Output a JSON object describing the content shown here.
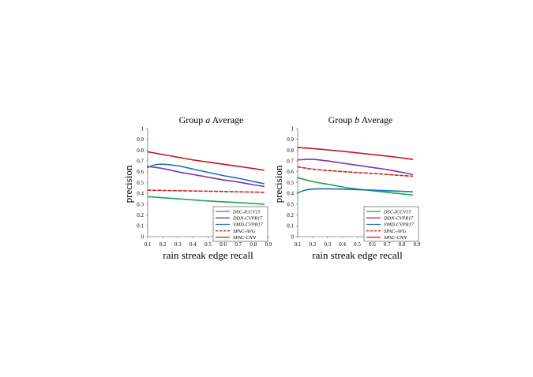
{
  "chart_data": [
    {
      "type": "line",
      "title": {
        "prefix": "Group ",
        "italic": "a",
        "suffix": " Average"
      },
      "xlabel": "rain streak edge recall",
      "ylabel": "precision",
      "xlim": [
        0.1,
        0.9
      ],
      "ylim": [
        0,
        1
      ],
      "xticks": [
        "0.1",
        "0.2",
        "0.3",
        "0.4",
        "0.5",
        "0.6",
        "0.7",
        "0.8",
        "0.9"
      ],
      "yticks": [
        "0",
        "0.1",
        "0.2",
        "0.3",
        "0.4",
        "0.5",
        "0.6",
        "0.7",
        "0.8",
        "0.9",
        "1"
      ],
      "grid": false,
      "legend_position": "bottom-right",
      "series": [
        {
          "name": "DSC-ICCV15",
          "color": "#1aa84a",
          "dash": false,
          "x": [
            0.1,
            0.3,
            0.5,
            0.7,
            0.87
          ],
          "y": [
            0.37,
            0.35,
            0.33,
            0.315,
            0.3
          ]
        },
        {
          "name": "DDN-CVPR17",
          "color": "#7a35b0",
          "dash": false,
          "x": [
            0.1,
            0.2,
            0.3,
            0.4,
            0.5,
            0.6,
            0.7,
            0.8,
            0.87
          ],
          "y": [
            0.65,
            0.63,
            0.6,
            0.575,
            0.55,
            0.525,
            0.505,
            0.48,
            0.465
          ]
        },
        {
          "name": "VMD-CVPR17",
          "color": "#1f6fb8",
          "dash": false,
          "x": [
            0.1,
            0.15,
            0.2,
            0.3,
            0.4,
            0.5,
            0.6,
            0.7,
            0.8,
            0.87
          ],
          "y": [
            0.64,
            0.665,
            0.67,
            0.655,
            0.625,
            0.595,
            0.565,
            0.54,
            0.51,
            0.49
          ]
        },
        {
          "name": "SPAC-AVG",
          "color": "#d11f1f",
          "dash": true,
          "x": [
            0.1,
            0.3,
            0.5,
            0.7,
            0.87
          ],
          "y": [
            0.43,
            0.425,
            0.42,
            0.415,
            0.41
          ]
        },
        {
          "name": "SPAC-CNN",
          "color": "#c8141a",
          "dash": false,
          "x": [
            0.1,
            0.2,
            0.3,
            0.4,
            0.5,
            0.6,
            0.7,
            0.8,
            0.87
          ],
          "y": [
            0.785,
            0.76,
            0.735,
            0.71,
            0.69,
            0.67,
            0.65,
            0.63,
            0.615
          ]
        }
      ]
    },
    {
      "type": "line",
      "title": {
        "prefix": "Group ",
        "italic": "b",
        "suffix": " Average"
      },
      "xlabel": "rain streak edge recall",
      "ylabel": "precision",
      "xlim": [
        0.1,
        0.9
      ],
      "ylim": [
        0,
        1
      ],
      "xticks": [
        "0.1",
        "0.2",
        "0.3",
        "0.4",
        "0.5",
        "0.6",
        "0.7",
        "0.8",
        "0.9"
      ],
      "yticks": [
        "0",
        "0.1",
        "0.2",
        "0.3",
        "0.4",
        "0.5",
        "0.6",
        "0.7",
        "0.8",
        "0.9",
        "1"
      ],
      "grid": false,
      "legend_position": "bottom-right",
      "series": [
        {
          "name": "DSC-ICCV15",
          "color": "#1aa84a",
          "dash": false,
          "x": [
            0.1,
            0.2,
            0.3,
            0.4,
            0.5,
            0.6,
            0.7,
            0.8,
            0.87
          ],
          "y": [
            0.545,
            0.51,
            0.485,
            0.46,
            0.44,
            0.425,
            0.41,
            0.395,
            0.385
          ]
        },
        {
          "name": "DDN-CVPR17",
          "color": "#7a35b0",
          "dash": false,
          "x": [
            0.1,
            0.2,
            0.3,
            0.4,
            0.5,
            0.6,
            0.7,
            0.8,
            0.87
          ],
          "y": [
            0.71,
            0.715,
            0.7,
            0.68,
            0.66,
            0.64,
            0.62,
            0.595,
            0.575
          ]
        },
        {
          "name": "VMD-CVPR17",
          "color": "#1f6fb8",
          "dash": false,
          "x": [
            0.1,
            0.15,
            0.2,
            0.3,
            0.5,
            0.7,
            0.87
          ],
          "y": [
            0.405,
            0.43,
            0.44,
            0.442,
            0.435,
            0.425,
            0.415
          ]
        },
        {
          "name": "SPAC-AVG",
          "color": "#d11f1f",
          "dash": true,
          "x": [
            0.1,
            0.2,
            0.3,
            0.4,
            0.5,
            0.6,
            0.7,
            0.8,
            0.87
          ],
          "y": [
            0.645,
            0.625,
            0.612,
            0.602,
            0.593,
            0.585,
            0.575,
            0.565,
            0.56
          ]
        },
        {
          "name": "SPAC-CNN",
          "color": "#c8141a",
          "dash": false,
          "x": [
            0.1,
            0.2,
            0.3,
            0.4,
            0.5,
            0.6,
            0.7,
            0.8,
            0.87
          ],
          "y": [
            0.825,
            0.815,
            0.803,
            0.79,
            0.775,
            0.76,
            0.745,
            0.728,
            0.715
          ]
        }
      ]
    }
  ]
}
